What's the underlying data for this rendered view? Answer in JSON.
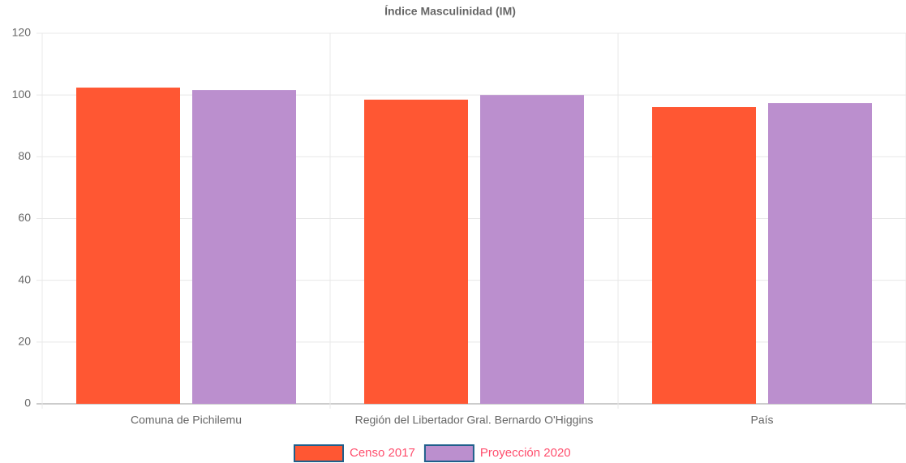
{
  "chart_data": {
    "type": "bar",
    "title": "Índice Masculinidad (IM)",
    "categories": [
      "Comuna de Pichilemu",
      "Región del Libertador Gral. Bernardo O'Higgins",
      "País"
    ],
    "series": [
      {
        "name": "Censo 2017",
        "color": "#ff5733",
        "values": [
          102.4,
          98.5,
          96.1
        ]
      },
      {
        "name": "Proyección 2020",
        "color": "#bb8fce",
        "values": [
          101.6,
          100.0,
          97.4
        ]
      }
    ],
    "ylim": [
      0,
      120
    ],
    "yticks": [
      0,
      20,
      40,
      60,
      80,
      100,
      120
    ],
    "grid": true,
    "legend": "bottom"
  }
}
